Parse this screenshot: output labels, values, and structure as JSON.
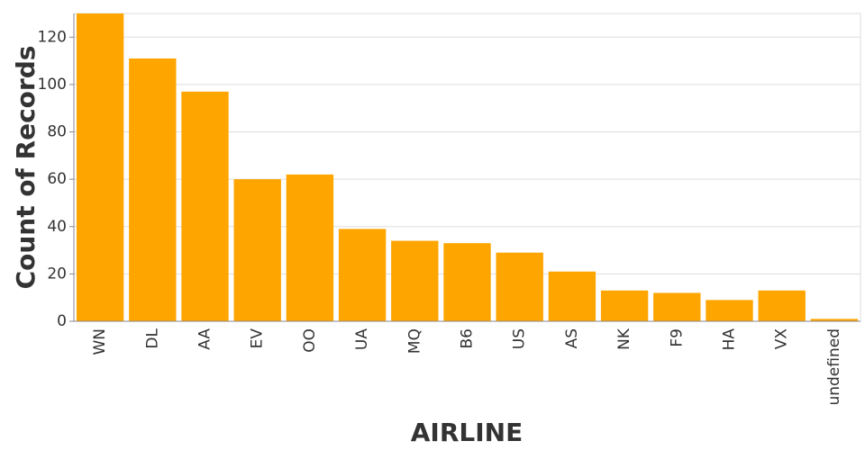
{
  "chart_data": {
    "type": "bar",
    "x_label": "AIRLINE",
    "y_label": "Count of Records",
    "categories": [
      "WN",
      "DL",
      "AA",
      "EV",
      "OO",
      "UA",
      "MQ",
      "B6",
      "US",
      "AS",
      "NK",
      "F9",
      "HA",
      "VX",
      "undefined"
    ],
    "values": [
      130,
      111,
      97,
      60,
      62,
      39,
      34,
      33,
      29,
      21,
      13,
      12,
      9,
      13,
      1
    ],
    "color": "#ffa500",
    "ylim": [
      0,
      130
    ],
    "yticks": [
      0,
      20,
      40,
      60,
      80,
      100,
      120
    ],
    "grid": true
  }
}
